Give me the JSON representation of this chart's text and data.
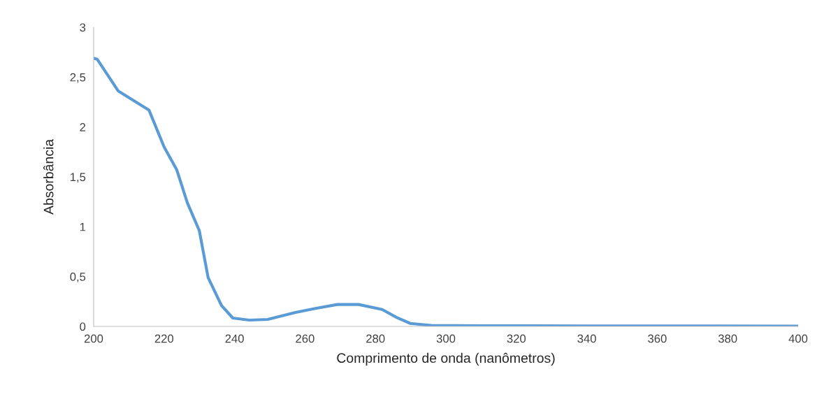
{
  "chart_data": {
    "type": "line",
    "xlabel": "Comprimento de onda (nanômetros)",
    "ylabel": "Absorbância",
    "xlim": [
      200,
      400
    ],
    "xticks": [
      200,
      220,
      240,
      260,
      280,
      300,
      320,
      340,
      360,
      380,
      400
    ],
    "ylim": [
      0,
      3
    ],
    "yticks": [
      0,
      {
        "value": 0.5,
        "label": "0,5"
      },
      1,
      {
        "value": 1.5,
        "label": "1,5"
      },
      2,
      {
        "value": 2.5,
        "label": "2,5"
      },
      3
    ],
    "grid": false,
    "legend": false,
    "marker": "none",
    "line_style": "solid",
    "series": [
      {
        "color": "#5b9bd5",
        "x": [
          200,
          201,
          207,
          215.7,
          220,
          223.6,
          226.6,
          230,
          232.5,
          236.3,
          239.5,
          244.2,
          249.4,
          257.3,
          263,
          269.2,
          275.2,
          281.9,
          286,
          289.9,
          295.8,
          310,
          340,
          370,
          400
        ],
        "values": [
          2.69,
          2.68,
          2.36,
          2.17,
          1.8,
          1.57,
          1.24,
          0.96,
          0.49,
          0.21,
          0.084,
          0.063,
          0.07,
          0.14,
          0.18,
          0.22,
          0.22,
          0.17,
          0.09,
          0.03,
          0.01,
          0.007,
          0.005,
          0.004,
          0.003
        ]
      }
    ]
  }
}
